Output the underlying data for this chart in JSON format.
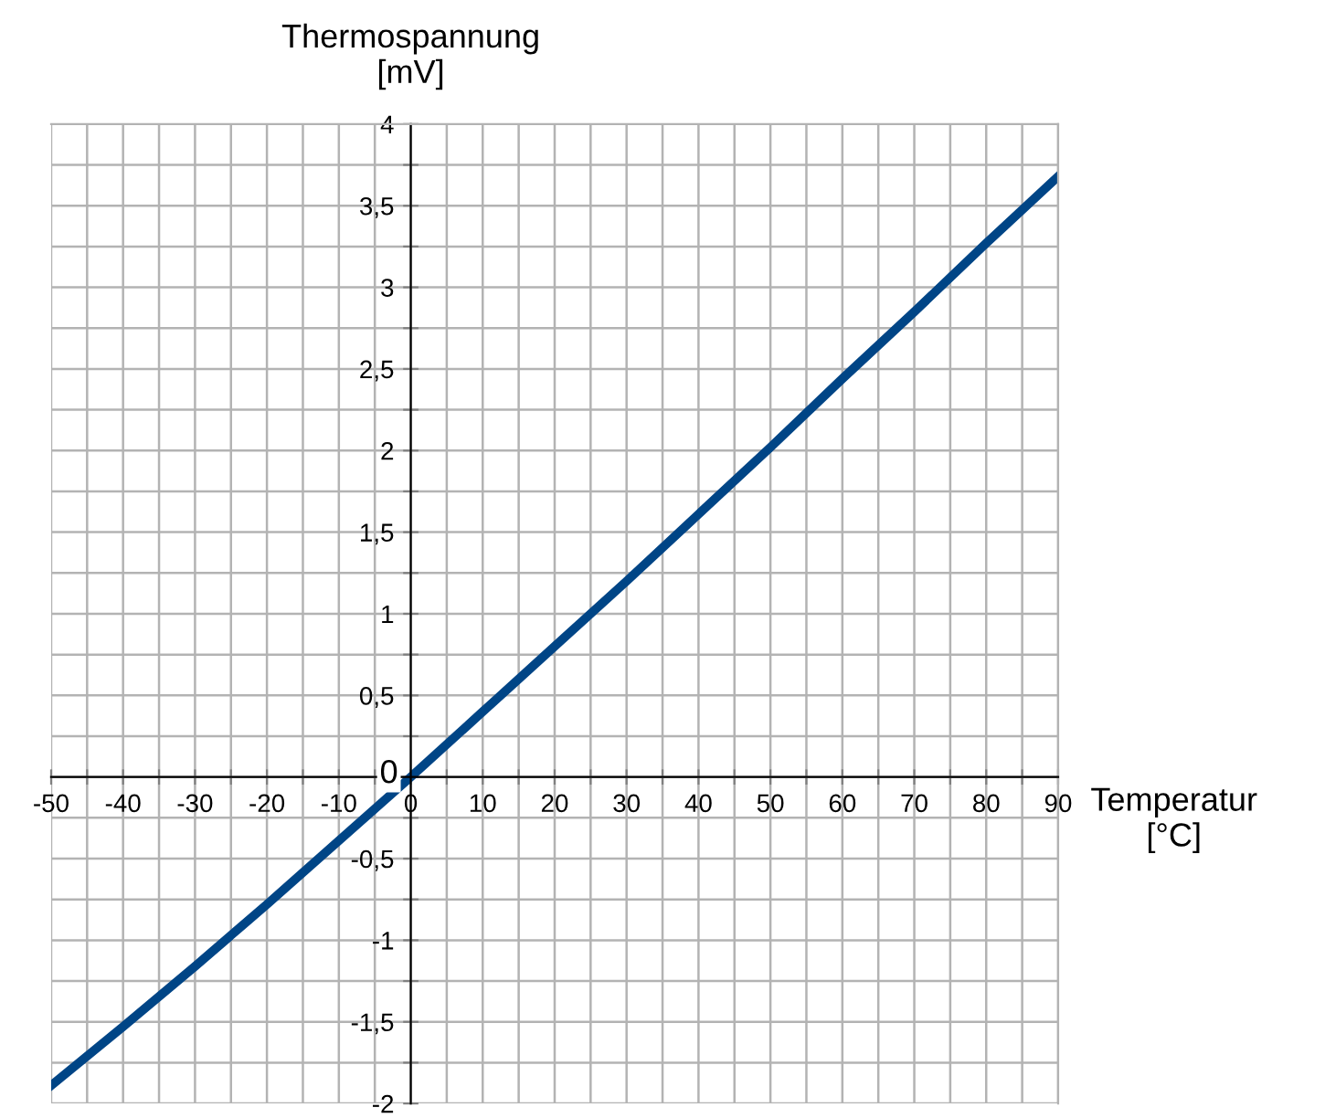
{
  "chart_data": {
    "type": "line",
    "xlabel": "Temperatur\n[°C]",
    "ylabel": "Thermospannung\n[mV]",
    "x": [
      -50,
      -40,
      -30,
      -20,
      -10,
      0,
      10,
      20,
      30,
      40,
      50,
      60,
      70,
      80,
      90
    ],
    "series": [
      {
        "color": "#004586",
        "values": [
          -1.89,
          -1.53,
          -1.16,
          -0.78,
          -0.39,
          0,
          0.4,
          0.8,
          1.2,
          1.61,
          2.02,
          2.44,
          2.85,
          3.27,
          3.68
        ]
      }
    ],
    "xlim": [
      -50,
      90
    ],
    "ylim": [
      -2,
      4
    ],
    "xticks": [
      -50,
      {
        "value": -45,
        "label": null
      },
      -40,
      {
        "value": -35,
        "label": null
      },
      -30,
      {
        "value": -25,
        "label": null
      },
      -20,
      {
        "value": -15,
        "label": null
      },
      -10,
      {
        "value": -5,
        "label": null
      },
      0,
      {
        "value": 5,
        "label": null
      },
      10,
      {
        "value": 15,
        "label": null
      },
      20,
      {
        "value": 25,
        "label": null
      },
      30,
      {
        "value": 35,
        "label": null
      },
      40,
      {
        "value": 45,
        "label": null
      },
      50,
      {
        "value": 55,
        "label": null
      },
      60,
      {
        "value": 65,
        "label": null
      },
      70,
      {
        "value": 75,
        "label": null
      },
      80,
      {
        "value": 85,
        "label": null
      },
      90
    ],
    "yticks": [
      -2,
      {
        "value": -1.75,
        "label": null
      },
      {
        "value": -1.5,
        "label": "-1,5"
      },
      {
        "value": -1.25,
        "label": null
      },
      -1,
      {
        "value": -0.75,
        "label": null
      },
      {
        "value": -0.5,
        "label": "-0,5"
      },
      {
        "value": -0.25,
        "label": null
      },
      0,
      {
        "value": 0.25,
        "label": null
      },
      {
        "value": 0.5,
        "label": "0,5"
      },
      {
        "value": 0.75,
        "label": null
      },
      1,
      {
        "value": 1.25,
        "label": null
      },
      {
        "value": 1.5,
        "label": "1,5"
      },
      {
        "value": 1.75,
        "label": null
      },
      2,
      {
        "value": 2.25,
        "label": null
      },
      {
        "value": 2.5,
        "label": "2,5"
      },
      {
        "value": 2.75,
        "label": null
      },
      3,
      {
        "value": 3.25,
        "label": null
      },
      {
        "value": 3.5,
        "label": "3,5"
      },
      {
        "value": 3.75,
        "label": null
      },
      4
    ],
    "grid": true,
    "line_style": "solid",
    "marker": "none"
  }
}
